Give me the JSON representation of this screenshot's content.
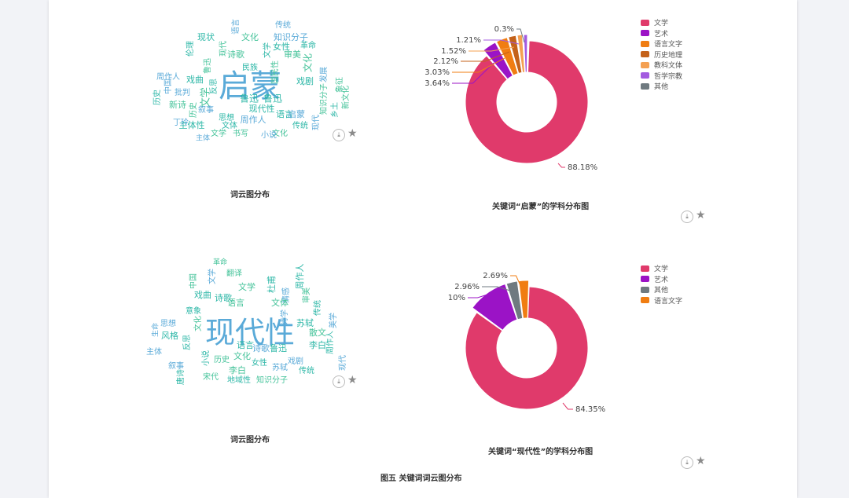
{
  "wordclouds": [
    {
      "caption": "词云图分布",
      "words": [
        {
          "t": "启蒙",
          "c": "#5aaad8",
          "s": 40,
          "x": 318,
          "y": 112
        },
        {
          "t": "文学",
          "c": "#45c39a",
          "s": 13,
          "x": 262,
          "y": 124,
          "r": -90
        },
        {
          "t": "鲁迅",
          "c": "#2db7a7",
          "s": 12,
          "x": 317,
          "y": 126
        },
        {
          "t": "鲁迅",
          "c": "#2db7a7",
          "s": 12,
          "x": 347,
          "y": 126
        },
        {
          "t": "现代性",
          "c": "#2db7a7",
          "s": 11,
          "x": 333,
          "y": 139
        },
        {
          "t": "周作人",
          "c": "#5aaad8",
          "s": 11,
          "x": 322,
          "y": 153
        },
        {
          "t": "文化",
          "c": "#45c39a",
          "s": 11,
          "x": 318,
          "y": 48
        },
        {
          "t": "知识分子",
          "c": "#5aaad8",
          "s": 11,
          "x": 370,
          "y": 48
        },
        {
          "t": "现状",
          "c": "#2db7a7",
          "s": 11,
          "x": 262,
          "y": 48
        },
        {
          "t": "传统",
          "c": "#5aaad8",
          "s": 10,
          "x": 360,
          "y": 32
        },
        {
          "t": "女性",
          "c": "#2db7a7",
          "s": 11,
          "x": 358,
          "y": 60
        },
        {
          "t": "审美",
          "c": "#45c39a",
          "s": 11,
          "x": 372,
          "y": 70
        },
        {
          "t": "戏曲",
          "c": "#2db7a7",
          "s": 11,
          "x": 248,
          "y": 102
        },
        {
          "t": "诗歌",
          "c": "#45c39a",
          "s": 11,
          "x": 300,
          "y": 70
        },
        {
          "t": "新诗",
          "c": "#45c39a",
          "s": 11,
          "x": 226,
          "y": 134
        },
        {
          "t": "主体性",
          "c": "#2db7a7",
          "s": 11,
          "x": 244,
          "y": 160
        },
        {
          "t": "文化",
          "c": "#45c39a",
          "s": 12,
          "x": 392,
          "y": 80,
          "r": -90
        },
        {
          "t": "发展",
          "c": "#5aaad8",
          "s": 10,
          "x": 412,
          "y": 95,
          "r": -90
        },
        {
          "t": "语言",
          "c": "#2db7a7",
          "s": 11,
          "x": 362,
          "y": 146
        },
        {
          "t": "启蒙",
          "c": "#5aaad8",
          "s": 11,
          "x": 377,
          "y": 146
        },
        {
          "t": "伦理",
          "c": "#2db7a7",
          "s": 10,
          "x": 242,
          "y": 62,
          "r": -90
        },
        {
          "t": "现代",
          "c": "#45c39a",
          "s": 10,
          "x": 284,
          "y": 62,
          "r": -90
        },
        {
          "t": "文体",
          "c": "#2db7a7",
          "s": 10,
          "x": 292,
          "y": 160
        },
        {
          "t": "文化",
          "c": "#45c39a",
          "s": 10,
          "x": 356,
          "y": 170
        },
        {
          "t": "丁玲",
          "c": "#5aaad8",
          "s": 10,
          "x": 230,
          "y": 156
        },
        {
          "t": "戏剧",
          "c": "#2db7a7",
          "s": 11,
          "x": 388,
          "y": 104
        },
        {
          "t": "象征",
          "c": "#45c39a",
          "s": 10,
          "x": 432,
          "y": 108,
          "r": -90
        },
        {
          "t": "中国",
          "c": "#5aaad8",
          "s": 10,
          "x": 214,
          "y": 110,
          "r": -90
        },
        {
          "t": "乡土",
          "c": "#2db7a7",
          "s": 10,
          "x": 426,
          "y": 140,
          "r": -90
        },
        {
          "t": "知识分子",
          "c": "#45c39a",
          "s": 10,
          "x": 412,
          "y": 126,
          "r": -90
        },
        {
          "t": "叙事",
          "c": "#5aaad8",
          "s": 10,
          "x": 262,
          "y": 140
        },
        {
          "t": "革命",
          "c": "#2db7a7",
          "s": 10,
          "x": 392,
          "y": 58
        },
        {
          "t": "书写",
          "c": "#45c39a",
          "s": 10,
          "x": 306,
          "y": 170
        },
        {
          "t": "小说",
          "c": "#5aaad8",
          "s": 10,
          "x": 342,
          "y": 172
        },
        {
          "t": "传统",
          "c": "#2db7a7",
          "s": 10,
          "x": 382,
          "y": 160
        },
        {
          "t": "文学",
          "c": "#45c39a",
          "s": 10,
          "x": 278,
          "y": 170
        },
        {
          "t": "反思",
          "c": "#2db7a7",
          "s": 10,
          "x": 272,
          "y": 110,
          "r": -90
        },
        {
          "t": "现代",
          "c": "#5aaad8",
          "s": 10,
          "x": 402,
          "y": 156,
          "r": -90
        },
        {
          "t": "鲁迅",
          "c": "#45c39a",
          "s": 10,
          "x": 264,
          "y": 84,
          "r": -90
        },
        {
          "t": "民族",
          "c": "#2db7a7",
          "s": 10,
          "x": 318,
          "y": 86
        },
        {
          "t": "主体",
          "c": "#5aaad8",
          "s": 9,
          "x": 258,
          "y": 176
        },
        {
          "t": "国民性",
          "c": "#45c39a",
          "s": 10,
          "x": 350,
          "y": 92,
          "r": -90
        },
        {
          "t": "历史",
          "c": "#2db7a7",
          "s": 10,
          "x": 200,
          "y": 124,
          "r": -90
        },
        {
          "t": "周作人",
          "c": "#5aaad8",
          "s": 10,
          "x": 214,
          "y": 98
        },
        {
          "t": "思想",
          "c": "#2db7a7",
          "s": 10,
          "x": 288,
          "y": 150
        },
        {
          "t": "新文化",
          "c": "#45c39a",
          "s": 10,
          "x": 440,
          "y": 124,
          "r": -90
        },
        {
          "t": "语言",
          "c": "#5aaad8",
          "s": 10,
          "x": 300,
          "y": 34,
          "r": -90
        },
        {
          "t": "文学",
          "c": "#2db7a7",
          "s": 10,
          "x": 340,
          "y": 64,
          "r": -90
        },
        {
          "t": "历史",
          "c": "#45c39a",
          "s": 10,
          "x": 246,
          "y": 140,
          "r": -90
        },
        {
          "t": "批判",
          "c": "#5aaad8",
          "s": 10,
          "x": 232,
          "y": 118
        }
      ],
      "download_label": "⤓",
      "star_label": "★"
    },
    {
      "caption": "词云图分布",
      "words": [
        {
          "t": "现代性",
          "c": "#5aaad8",
          "s": 38,
          "x": 318,
          "y": 426
        },
        {
          "t": "文学",
          "c": "#45c39a",
          "s": 11,
          "x": 314,
          "y": 366
        },
        {
          "t": "诗歌",
          "c": "#2db7a7",
          "s": 11,
          "x": 284,
          "y": 380
        },
        {
          "t": "语言",
          "c": "#45c39a",
          "s": 11,
          "x": 300,
          "y": 386
        },
        {
          "t": "戏曲",
          "c": "#2db7a7",
          "s": 11,
          "x": 258,
          "y": 376
        },
        {
          "t": "苏轼",
          "c": "#2db7a7",
          "s": 11,
          "x": 388,
          "y": 412
        },
        {
          "t": "散文",
          "c": "#45c39a",
          "s": 11,
          "x": 404,
          "y": 424
        },
        {
          "t": "李白",
          "c": "#2db7a7",
          "s": 11,
          "x": 404,
          "y": 440
        },
        {
          "t": "文化",
          "c": "#45c39a",
          "s": 11,
          "x": 308,
          "y": 454
        },
        {
          "t": "诗歌",
          "c": "#5aaad8",
          "s": 11,
          "x": 332,
          "y": 444
        },
        {
          "t": "鲁迅",
          "c": "#2db7a7",
          "s": 11,
          "x": 354,
          "y": 444
        },
        {
          "t": "李白",
          "c": "#45c39a",
          "s": 11,
          "x": 302,
          "y": 472
        },
        {
          "t": "风格",
          "c": "#2db7a7",
          "s": 11,
          "x": 216,
          "y": 428
        },
        {
          "t": "主体",
          "c": "#5aaad8",
          "s": 10,
          "x": 196,
          "y": 448
        },
        {
          "t": "地域性",
          "c": "#2db7a7",
          "s": 10,
          "x": 304,
          "y": 484
        },
        {
          "t": "知识分子",
          "c": "#45c39a",
          "s": 10,
          "x": 346,
          "y": 484
        },
        {
          "t": "杜甫",
          "c": "#2db7a7",
          "s": 11,
          "x": 346,
          "y": 362,
          "r": -90
        },
        {
          "t": "情感",
          "c": "#5aaad8",
          "s": 10,
          "x": 364,
          "y": 376,
          "r": -90
        },
        {
          "t": "周作人",
          "c": "#2db7a7",
          "s": 11,
          "x": 382,
          "y": 352,
          "r": -90
        },
        {
          "t": "文体",
          "c": "#45c39a",
          "s": 11,
          "x": 356,
          "y": 386
        },
        {
          "t": "传统",
          "c": "#2db7a7",
          "s": 10,
          "x": 404,
          "y": 392,
          "r": -90
        },
        {
          "t": "美学",
          "c": "#5aaad8",
          "s": 10,
          "x": 424,
          "y": 408,
          "r": -90
        },
        {
          "t": "审美",
          "c": "#45c39a",
          "s": 10,
          "x": 390,
          "y": 376,
          "r": -90
        },
        {
          "t": "反思",
          "c": "#2db7a7",
          "s": 10,
          "x": 238,
          "y": 436,
          "r": -90
        },
        {
          "t": "思想",
          "c": "#5aaad8",
          "s": 10,
          "x": 214,
          "y": 412
        },
        {
          "t": "文化",
          "c": "#45c39a",
          "s": 10,
          "x": 252,
          "y": 412,
          "r": -90
        },
        {
          "t": "传统",
          "c": "#2db7a7",
          "s": 10,
          "x": 390,
          "y": 472
        },
        {
          "t": "现代",
          "c": "#5aaad8",
          "s": 10,
          "x": 436,
          "y": 462,
          "r": -90
        },
        {
          "t": "历史",
          "c": "#45c39a",
          "s": 10,
          "x": 282,
          "y": 458
        },
        {
          "t": "小说",
          "c": "#2db7a7",
          "s": 10,
          "x": 262,
          "y": 456,
          "r": -90
        },
        {
          "t": "叙事",
          "c": "#5aaad8",
          "s": 10,
          "x": 224,
          "y": 466
        },
        {
          "t": "语言",
          "c": "#2db7a7",
          "s": 11,
          "x": 312,
          "y": 440
        },
        {
          "t": "宋代",
          "c": "#45c39a",
          "s": 10,
          "x": 268,
          "y": 480
        },
        {
          "t": "戏剧",
          "c": "#5aaad8",
          "s": 10,
          "x": 376,
          "y": 460
        },
        {
          "t": "唐诗",
          "c": "#2db7a7",
          "s": 10,
          "x": 230,
          "y": 480,
          "r": -90
        },
        {
          "t": "中国",
          "c": "#45c39a",
          "s": 10,
          "x": 246,
          "y": 358,
          "r": -90
        },
        {
          "t": "文学",
          "c": "#5aaad8",
          "s": 10,
          "x": 270,
          "y": 352,
          "r": -90
        },
        {
          "t": "意象",
          "c": "#2db7a7",
          "s": 10,
          "x": 246,
          "y": 396
        },
        {
          "t": "革命",
          "c": "#45c39a",
          "s": 9,
          "x": 280,
          "y": 334
        },
        {
          "t": "诗学",
          "c": "#5aaad8",
          "s": 10,
          "x": 362,
          "y": 404,
          "r": -90
        },
        {
          "t": "周作人",
          "c": "#2db7a7",
          "s": 10,
          "x": 420,
          "y": 436,
          "r": -90
        },
        {
          "t": "翻译",
          "c": "#45c39a",
          "s": 10,
          "x": 298,
          "y": 348
        },
        {
          "t": "生命",
          "c": "#5aaad8",
          "s": 9,
          "x": 198,
          "y": 420,
          "r": -90
        },
        {
          "t": "女性",
          "c": "#2db7a7",
          "s": 10,
          "x": 330,
          "y": 462
        },
        {
          "t": "苏轼",
          "c": "#5aaad8",
          "s": 10,
          "x": 356,
          "y": 468
        }
      ],
      "download_label": "⤓",
      "star_label": "★"
    }
  ],
  "chart_data": [
    {
      "type": "pie",
      "title": "关键词“启蒙”的学科分布图",
      "donut": true,
      "legend": "top-right",
      "slices": [
        {
          "name": "文学",
          "value": 88.18,
          "label": "88.18%",
          "color": "#e03a6b"
        },
        {
          "name": "艺术",
          "value": 3.64,
          "label": "3.64%",
          "color": "#9b13c6"
        },
        {
          "name": "语言文字",
          "value": 3.03,
          "label": "3.03%",
          "color": "#f07d12"
        },
        {
          "name": "历史地理",
          "value": 2.12,
          "label": "2.12%",
          "color": "#c4621a"
        },
        {
          "name": "教科文体",
          "value": 1.52,
          "label": "1.52%",
          "color": "#f4a052"
        },
        {
          "name": "哲学宗教",
          "value": 1.21,
          "label": "1.21%",
          "color": "#a35be0"
        },
        {
          "name": "其他",
          "value": 0.3,
          "label": "0.3%",
          "color": "#6f7a80"
        }
      ],
      "download_label": "⤓",
      "star_label": "★"
    },
    {
      "type": "pie",
      "title": "关键词“现代性”的学科分布图",
      "donut": true,
      "legend": "top-right",
      "slices": [
        {
          "name": "文学",
          "value": 84.35,
          "label": "84.35%",
          "color": "#e03a6b"
        },
        {
          "name": "艺术",
          "value": 10,
          "label": "10%",
          "color": "#9b13c6"
        },
        {
          "name": "其他",
          "value": 2.96,
          "label": "2.96%",
          "color": "#6f7a80"
        },
        {
          "name": "语言文字",
          "value": 2.69,
          "label": "2.69%",
          "color": "#f07d12"
        }
      ],
      "download_label": "⤓",
      "star_label": "★"
    }
  ],
  "figure_caption": "图五 关键词词云图分布"
}
